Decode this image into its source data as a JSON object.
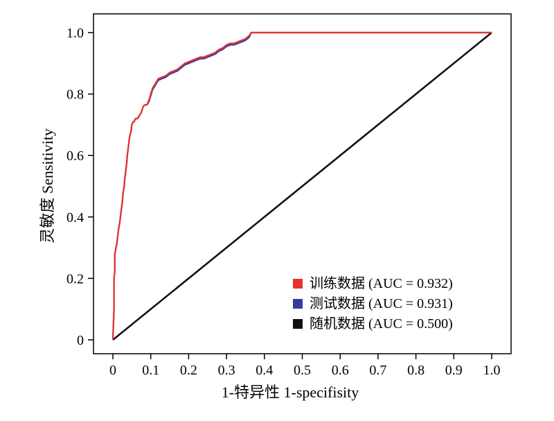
{
  "chart_data": {
    "type": "line",
    "xlabel": "1-特异性 1-specifisity",
    "ylabel": "灵敏度 Sensitivity",
    "xlim": [
      0,
      1.0
    ],
    "ylim": [
      0,
      1.0
    ],
    "grid": false,
    "legend_position": "bottom-right",
    "x_ticks": [
      "0",
      "0.1",
      "0.2",
      "0.3",
      "0.4",
      "0.5",
      "0.6",
      "0.7",
      "0.8",
      "0.9",
      "1.0"
    ],
    "y_ticks": [
      "0",
      "0.2",
      "0.4",
      "0.6",
      "0.8",
      "1.0"
    ],
    "series": [
      {
        "name": "训练数据 (AUC = 0.932)",
        "color": "#e8322d",
        "x": [
          0,
          0.003,
          0.003,
          0.005,
          0.005,
          0.007,
          0.008,
          0.01,
          0.012,
          0.015,
          0.018,
          0.02,
          0.022,
          0.025,
          0.027,
          0.03,
          0.031,
          0.033,
          0.035,
          0.037,
          0.038,
          0.04,
          0.042,
          0.044,
          0.046,
          0.048,
          0.05,
          0.052,
          0.054,
          0.056,
          0.06,
          0.065,
          0.07,
          0.075,
          0.08,
          0.085,
          0.09,
          0.095,
          0.1,
          0.105,
          0.11,
          0.115,
          0.12,
          0.13,
          0.14,
          0.15,
          0.16,
          0.17,
          0.18,
          0.19,
          0.2,
          0.21,
          0.22,
          0.23,
          0.24,
          0.25,
          0.26,
          0.27,
          0.28,
          0.29,
          0.3,
          0.31,
          0.32,
          0.33,
          0.34,
          0.35,
          0.36,
          0.365,
          0.5,
          0.7,
          1.0
        ],
        "y": [
          0,
          0.1,
          0.2,
          0.22,
          0.28,
          0.29,
          0.3,
          0.31,
          0.33,
          0.36,
          0.38,
          0.4,
          0.42,
          0.45,
          0.48,
          0.5,
          0.52,
          0.54,
          0.56,
          0.58,
          0.6,
          0.62,
          0.64,
          0.66,
          0.67,
          0.68,
          0.7,
          0.705,
          0.71,
          0.71,
          0.72,
          0.72,
          0.73,
          0.74,
          0.76,
          0.765,
          0.765,
          0.78,
          0.8,
          0.82,
          0.83,
          0.84,
          0.85,
          0.855,
          0.86,
          0.87,
          0.875,
          0.88,
          0.89,
          0.9,
          0.905,
          0.91,
          0.915,
          0.92,
          0.92,
          0.925,
          0.93,
          0.935,
          0.945,
          0.95,
          0.96,
          0.965,
          0.965,
          0.97,
          0.975,
          0.98,
          0.99,
          1.0,
          1.0,
          1.0,
          1.0
        ]
      },
      {
        "name": "测试数据 (AUC = 0.931)",
        "color": "#3b3a9c",
        "x": [
          0,
          0.003,
          0.003,
          0.005,
          0.005,
          0.007,
          0.008,
          0.01,
          0.012,
          0.015,
          0.018,
          0.02,
          0.022,
          0.025,
          0.027,
          0.03,
          0.031,
          0.033,
          0.035,
          0.037,
          0.038,
          0.04,
          0.042,
          0.044,
          0.046,
          0.048,
          0.05,
          0.052,
          0.054,
          0.056,
          0.06,
          0.065,
          0.07,
          0.075,
          0.08,
          0.085,
          0.09,
          0.095,
          0.1,
          0.105,
          0.11,
          0.115,
          0.12,
          0.13,
          0.14,
          0.15,
          0.16,
          0.17,
          0.18,
          0.19,
          0.2,
          0.21,
          0.22,
          0.23,
          0.24,
          0.25,
          0.26,
          0.27,
          0.28,
          0.29,
          0.3,
          0.31,
          0.32,
          0.33,
          0.34,
          0.35,
          0.36,
          0.365,
          0.5,
          0.7,
          1.0
        ],
        "y": [
          0,
          0.1,
          0.2,
          0.22,
          0.28,
          0.29,
          0.3,
          0.31,
          0.33,
          0.36,
          0.38,
          0.4,
          0.42,
          0.45,
          0.48,
          0.5,
          0.52,
          0.54,
          0.56,
          0.58,
          0.6,
          0.62,
          0.64,
          0.66,
          0.67,
          0.68,
          0.7,
          0.705,
          0.71,
          0.71,
          0.72,
          0.72,
          0.73,
          0.74,
          0.76,
          0.765,
          0.765,
          0.775,
          0.795,
          0.815,
          0.825,
          0.835,
          0.845,
          0.85,
          0.855,
          0.865,
          0.87,
          0.875,
          0.885,
          0.895,
          0.9,
          0.905,
          0.91,
          0.915,
          0.915,
          0.92,
          0.925,
          0.93,
          0.94,
          0.945,
          0.955,
          0.96,
          0.96,
          0.965,
          0.97,
          0.975,
          0.985,
          1.0,
          1.0,
          1.0,
          1.0
        ]
      },
      {
        "name": "随机数据 (AUC = 0.500)",
        "color": "#111111",
        "x": [
          0,
          1.0
        ],
        "y": [
          0,
          1.0
        ]
      }
    ]
  }
}
